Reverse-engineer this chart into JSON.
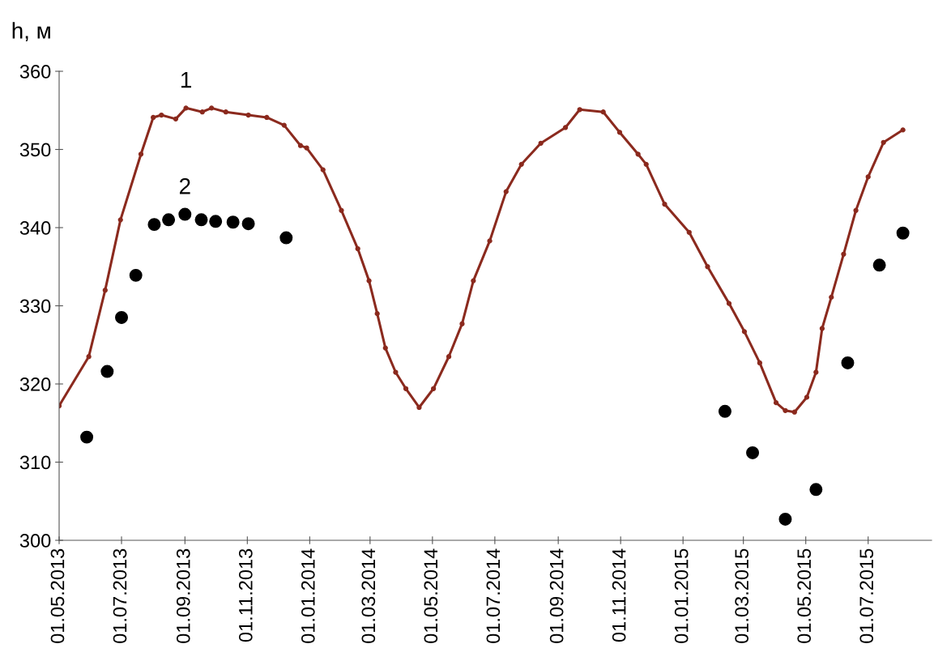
{
  "chart_data": {
    "type": "line",
    "ylabel": "h, м",
    "xlim": [
      "2013-05-01",
      "2015-09-01"
    ],
    "ylim": [
      300,
      360
    ],
    "yticks": [
      300,
      310,
      320,
      330,
      340,
      350,
      360
    ],
    "xticks": [
      {
        "value": "2013-05-01",
        "label": "01.05.2013"
      },
      {
        "value": "2013-07-01",
        "label": "01.07.2013"
      },
      {
        "value": "2013-09-01",
        "label": "01.09.2013"
      },
      {
        "value": "2013-11-01",
        "label": "01.11.2013"
      },
      {
        "value": "2014-01-01",
        "label": "01.01.2014"
      },
      {
        "value": "2014-03-01",
        "label": "01.03.2014"
      },
      {
        "value": "2014-05-01",
        "label": "01.05.2014"
      },
      {
        "value": "2014-07-01",
        "label": "01.07.2014"
      },
      {
        "value": "2014-09-01",
        "label": "01.09.2014"
      },
      {
        "value": "2014-11-01",
        "label": "01.11.2014"
      },
      {
        "value": "2015-01-01",
        "label": "01.01.2015"
      },
      {
        "value": "2015-03-01",
        "label": "01.03.2015"
      },
      {
        "value": "2015-05-01",
        "label": "01.05.2015"
      },
      {
        "value": "2015-07-01",
        "label": "01.07.2015"
      }
    ],
    "grid": false,
    "series": [
      {
        "color": "#8b2a1e",
        "marker": "circle",
        "line_style": "solid",
        "x": [
          "2013-05-01",
          "2013-05-30",
          "2013-06-15",
          "2013-06-30",
          "2013-07-20",
          "2013-08-01",
          "2013-08-09",
          "2013-08-23",
          "2013-09-02",
          "2013-09-18",
          "2013-09-27",
          "2013-10-11",
          "2013-11-02",
          "2013-11-20",
          "2013-12-07",
          "2013-12-23",
          "2013-12-29",
          "2014-01-14",
          "2014-02-01",
          "2014-02-17",
          "2014-02-28",
          "2014-03-08",
          "2014-03-16",
          "2014-03-26",
          "2014-04-05",
          "2014-04-18",
          "2014-05-02",
          "2014-05-17",
          "2014-05-30",
          "2014-06-10",
          "2014-06-26",
          "2014-07-12",
          "2014-07-27",
          "2014-08-15",
          "2014-09-08",
          "2014-09-22",
          "2014-10-15",
          "2014-10-31",
          "2014-11-18",
          "2014-11-26",
          "2014-12-14",
          "2015-01-07",
          "2015-01-25",
          "2015-02-15",
          "2015-03-02",
          "2015-03-17",
          "2015-04-02",
          "2015-04-11",
          "2015-04-20",
          "2015-05-02",
          "2015-05-11",
          "2015-05-17",
          "2015-05-26",
          "2015-06-07",
          "2015-06-19",
          "2015-07-01",
          "2015-07-16",
          "2015-08-04"
        ],
        "values": [
          317.2,
          323.5,
          332.0,
          341.0,
          349.4,
          354.1,
          354.4,
          353.9,
          355.3,
          354.8,
          355.3,
          354.8,
          354.4,
          354.1,
          353.1,
          350.5,
          350.2,
          347.4,
          342.2,
          337.3,
          333.2,
          329.0,
          324.6,
          321.5,
          319.4,
          317.0,
          319.4,
          323.5,
          327.7,
          333.2,
          338.3,
          344.6,
          348.1,
          350.8,
          352.8,
          355.1,
          354.8,
          352.2,
          349.4,
          348.1,
          343.0,
          339.4,
          335.0,
          330.3,
          326.7,
          322.7,
          317.6,
          316.6,
          316.4,
          318.3,
          321.5,
          327.1,
          331.1,
          336.6,
          342.2,
          346.5,
          350.9,
          352.5
        ]
      },
      {
        "type": "scatter",
        "color": "#000000",
        "marker": "circle",
        "x": [
          "2013-05-28",
          "2013-06-17",
          "2013-07-01",
          "2013-07-15",
          "2013-08-02",
          "2013-08-16",
          "2013-09-01",
          "2013-09-17",
          "2013-10-01",
          "2013-10-18",
          "2013-11-02",
          "2013-12-09",
          "2015-02-11",
          "2015-03-10",
          "2015-04-11",
          "2015-05-11",
          "2015-06-11",
          "2015-07-12",
          "2015-08-04"
        ],
        "values": [
          313.2,
          321.6,
          328.5,
          333.9,
          340.4,
          341.0,
          341.7,
          341.0,
          340.8,
          340.7,
          340.5,
          338.7,
          316.5,
          311.2,
          302.7,
          306.5,
          322.7,
          335.2,
          339.3
        ]
      }
    ],
    "annotations": [
      "1",
      "2"
    ]
  }
}
